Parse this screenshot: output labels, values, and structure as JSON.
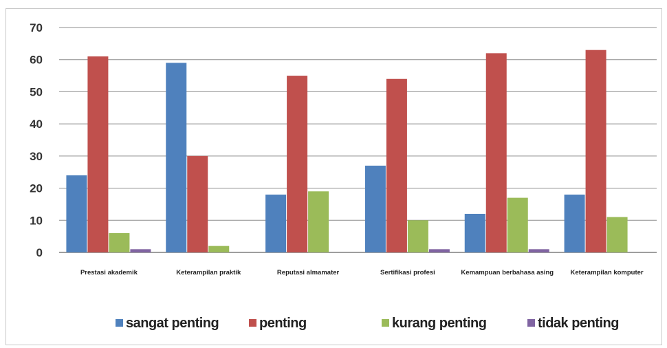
{
  "chart_data": {
    "type": "bar",
    "categories": [
      "Prestasi akademik",
      "Keterampilan praktik",
      "Reputasi almamater",
      "Sertifikasi profesi",
      "Kemampuan berbahasa asing",
      "Keterampilan komputer"
    ],
    "series": [
      {
        "name": "sangat penting",
        "values": [
          24,
          59,
          18,
          27,
          12,
          18
        ],
        "color": "#4f81bd"
      },
      {
        "name": "penting",
        "values": [
          61,
          30,
          55,
          54,
          62,
          63
        ],
        "color": "#c0504d"
      },
      {
        "name": "kurang penting",
        "values": [
          6,
          2,
          19,
          10,
          17,
          11
        ],
        "color": "#9bbb59"
      },
      {
        "name": "tidak penting",
        "values": [
          1,
          0,
          0,
          1,
          1,
          0
        ],
        "color": "#8064a2"
      }
    ],
    "yticks": [
      0,
      10,
      20,
      30,
      40,
      50,
      60,
      70
    ],
    "ylim": [
      0,
      70
    ],
    "grid": true,
    "legend_position": "bottom",
    "title": "",
    "xlabel": "",
    "ylabel": ""
  }
}
